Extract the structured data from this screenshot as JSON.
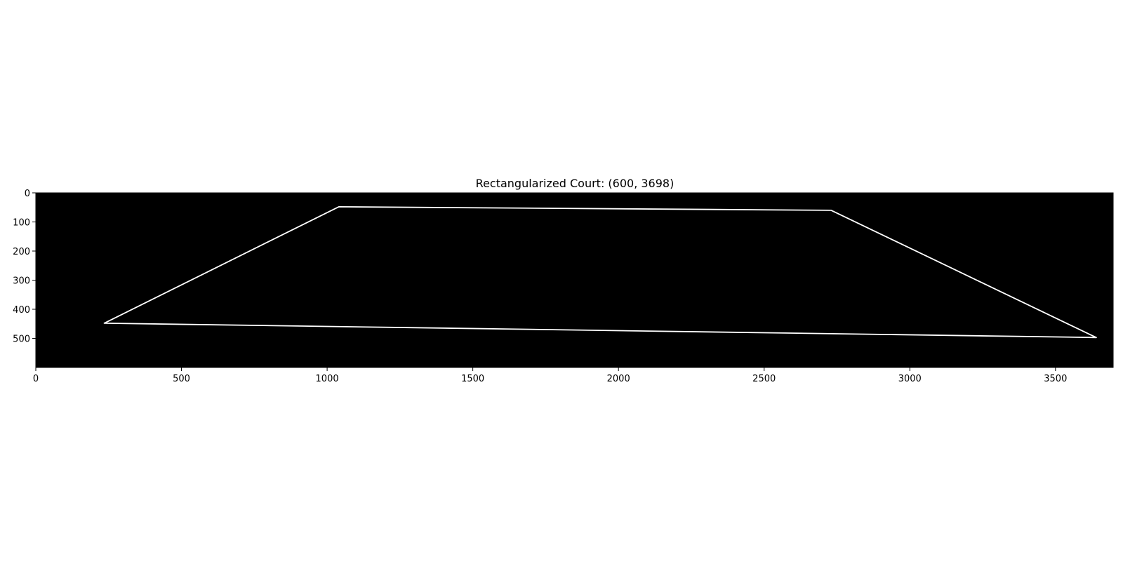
{
  "chart_data": {
    "type": "image",
    "title": "Rectangularized Court: (600, 3698)",
    "image_shape": [
      600,
      3698
    ],
    "xlim": [
      0,
      3698
    ],
    "ylim": [
      600,
      0
    ],
    "x_ticks": [
      0,
      500,
      1000,
      1500,
      2000,
      2500,
      3000,
      3500
    ],
    "y_ticks": [
      0,
      100,
      200,
      300,
      400,
      500
    ],
    "background_color": "#000000",
    "line_color": "#ffffff",
    "outline": [
      {
        "x": 1040,
        "y": 48
      },
      {
        "x": 2730,
        "y": 60
      },
      {
        "x": 3640,
        "y": 497
      },
      {
        "x": 235,
        "y": 448
      }
    ],
    "grid": false,
    "legend": "none"
  }
}
